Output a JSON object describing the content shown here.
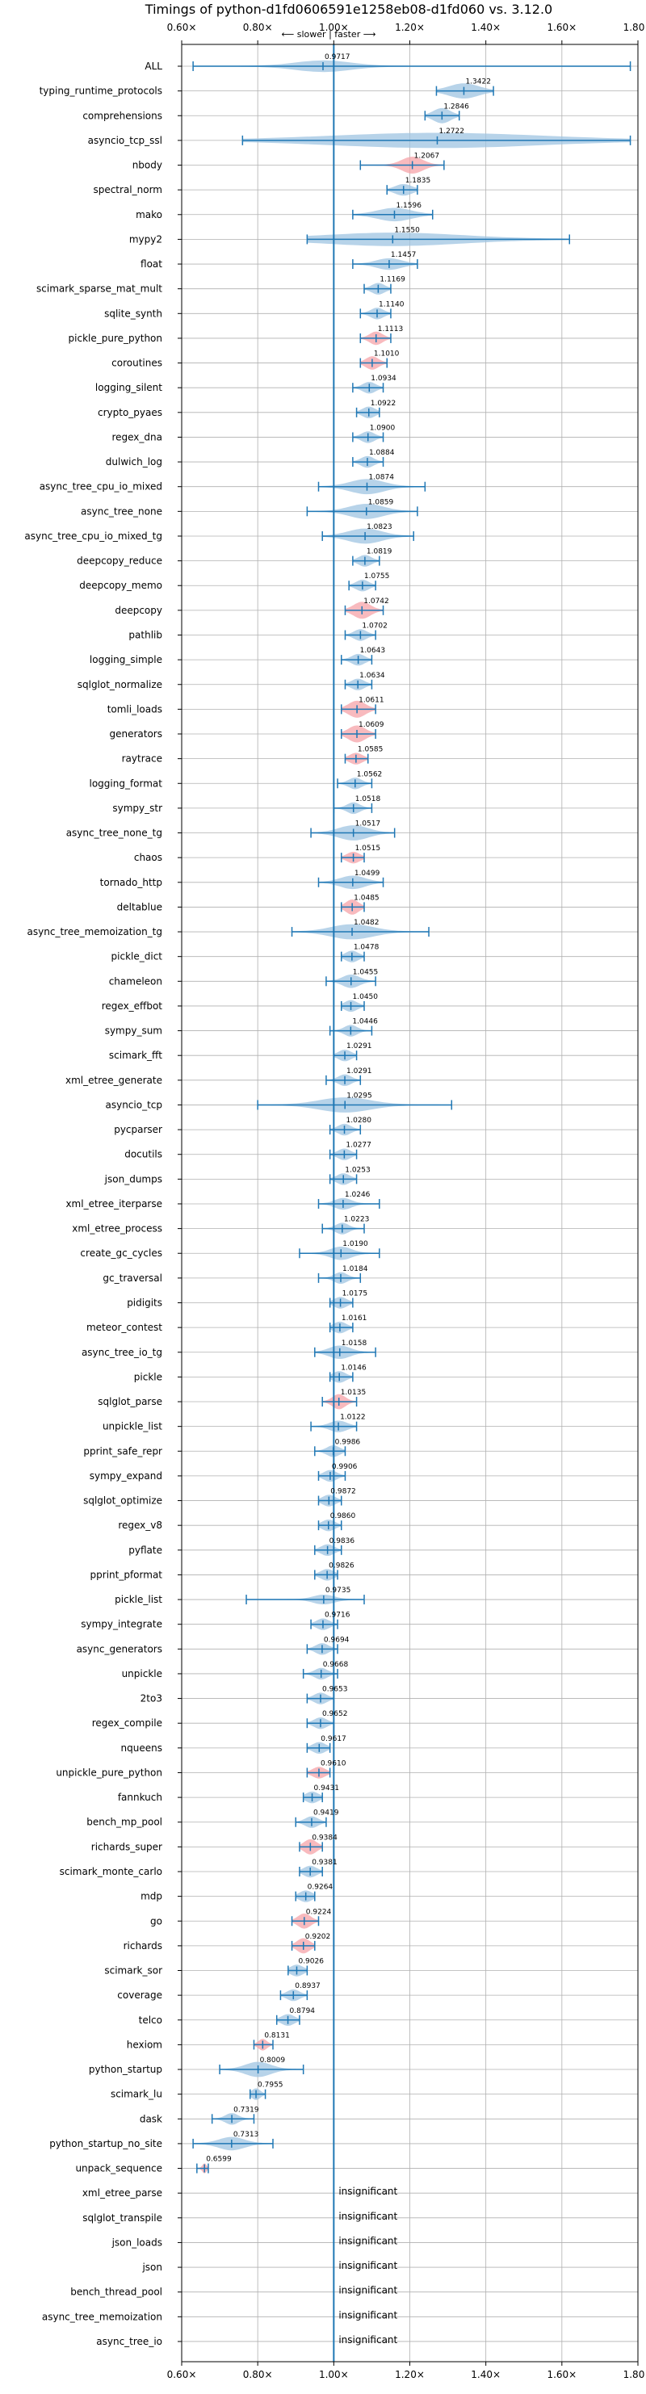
{
  "chart_data": {
    "type": "violin",
    "title": "Timings of python-d1fd0606591e1258eb08-d1fd060 vs. 3.12.0",
    "direction_label": "⟵ slower | faster ⟶",
    "xlim": [
      0.6,
      1.8
    ],
    "x_ticks": [
      "0.60×",
      "0.80×",
      "1.00×",
      "1.20×",
      "1.40×",
      "1.60×",
      "1.80×"
    ],
    "x_tick_values": [
      0.6,
      0.8,
      1.0,
      1.2,
      1.4,
      1.6,
      1.8
    ],
    "reference_line": 1.0,
    "insignificant_label": "insignificant",
    "colors": {
      "violin": "#9fc4e2",
      "highlight": "#f5a3a8",
      "line": "#1f77b4",
      "grid": "#b0b0b0"
    },
    "benchmarks": [
      {
        "name": "ALL",
        "value": 0.9717,
        "min": 0.63,
        "max": 1.78,
        "spread": 0.13,
        "w": 0.6
      },
      {
        "name": "typing_runtime_protocols",
        "value": 1.3422,
        "min": 1.27,
        "max": 1.42,
        "spread": 0.07,
        "w": 0.8
      },
      {
        "name": "comprehensions",
        "value": 1.2846,
        "min": 1.24,
        "max": 1.33,
        "spread": 0.04,
        "w": 0.8
      },
      {
        "name": "asyncio_tcp_ssl",
        "value": 1.2722,
        "min": 0.76,
        "max": 1.78,
        "spread": 0.5,
        "w": 0.8
      },
      {
        "name": "nbody",
        "value": 1.2067,
        "min": 1.07,
        "max": 1.29,
        "spread": 0.05,
        "w": 0.9,
        "hl": true
      },
      {
        "name": "spectral_norm",
        "value": 1.1835,
        "min": 1.14,
        "max": 1.22,
        "spread": 0.04,
        "w": 0.6
      },
      {
        "name": "mako",
        "value": 1.1596,
        "min": 1.05,
        "max": 1.26,
        "spread": 0.08,
        "w": 0.7
      },
      {
        "name": "mypy2",
        "value": 1.155,
        "min": 0.93,
        "max": 1.62,
        "spread": 0.33,
        "w": 0.7
      },
      {
        "name": "float",
        "value": 1.1457,
        "min": 1.05,
        "max": 1.22,
        "spread": 0.06,
        "w": 0.6
      },
      {
        "name": "scimark_sparse_mat_mult",
        "value": 1.1169,
        "min": 1.08,
        "max": 1.15,
        "spread": 0.03,
        "w": 0.6
      },
      {
        "name": "sqlite_synth",
        "value": 1.114,
        "min": 1.07,
        "max": 1.15,
        "spread": 0.03,
        "w": 0.6
      },
      {
        "name": "pickle_pure_python",
        "value": 1.1113,
        "min": 1.07,
        "max": 1.15,
        "spread": 0.03,
        "w": 0.7,
        "hl": true
      },
      {
        "name": "coroutines",
        "value": 1.101,
        "min": 1.07,
        "max": 1.14,
        "spread": 0.03,
        "w": 0.7,
        "hl": true
      },
      {
        "name": "logging_silent",
        "value": 1.0934,
        "min": 1.05,
        "max": 1.13,
        "spread": 0.03,
        "w": 0.6
      },
      {
        "name": "crypto_pyaes",
        "value": 1.0922,
        "min": 1.06,
        "max": 1.12,
        "spread": 0.03,
        "w": 0.6
      },
      {
        "name": "regex_dna",
        "value": 1.09,
        "min": 1.05,
        "max": 1.13,
        "spread": 0.03,
        "w": 0.6
      },
      {
        "name": "dulwich_log",
        "value": 1.0884,
        "min": 1.05,
        "max": 1.13,
        "spread": 0.03,
        "w": 0.6
      },
      {
        "name": "async_tree_cpu_io_mixed",
        "value": 1.0874,
        "min": 0.96,
        "max": 1.24,
        "spread": 0.08,
        "w": 0.8
      },
      {
        "name": "async_tree_none",
        "value": 1.0859,
        "min": 0.93,
        "max": 1.22,
        "spread": 0.08,
        "w": 0.8
      },
      {
        "name": "async_tree_cpu_io_mixed_tg",
        "value": 1.0823,
        "min": 0.97,
        "max": 1.21,
        "spread": 0.08,
        "w": 0.8
      },
      {
        "name": "deepcopy_reduce",
        "value": 1.0819,
        "min": 1.05,
        "max": 1.12,
        "spread": 0.03,
        "w": 0.6
      },
      {
        "name": "deepcopy_memo",
        "value": 1.0755,
        "min": 1.04,
        "max": 1.11,
        "spread": 0.03,
        "w": 0.6
      },
      {
        "name": "deepcopy",
        "value": 1.0742,
        "min": 1.03,
        "max": 1.13,
        "spread": 0.04,
        "w": 0.9,
        "hl": true
      },
      {
        "name": "pathlib",
        "value": 1.0702,
        "min": 1.03,
        "max": 1.11,
        "spread": 0.03,
        "w": 0.6
      },
      {
        "name": "logging_simple",
        "value": 1.0643,
        "min": 1.02,
        "max": 1.1,
        "spread": 0.03,
        "w": 0.6
      },
      {
        "name": "sqlglot_normalize",
        "value": 1.0634,
        "min": 1.03,
        "max": 1.1,
        "spread": 0.03,
        "w": 0.6
      },
      {
        "name": "tomli_loads",
        "value": 1.0611,
        "min": 1.02,
        "max": 1.11,
        "spread": 0.04,
        "w": 0.9,
        "hl": true
      },
      {
        "name": "generators",
        "value": 1.0609,
        "min": 1.02,
        "max": 1.11,
        "spread": 0.04,
        "w": 0.9,
        "hl": true
      },
      {
        "name": "raytrace",
        "value": 1.0585,
        "min": 1.03,
        "max": 1.09,
        "spread": 0.03,
        "w": 0.6,
        "hl": true
      },
      {
        "name": "logging_format",
        "value": 1.0562,
        "min": 1.01,
        "max": 1.1,
        "spread": 0.03,
        "w": 0.6
      },
      {
        "name": "sympy_str",
        "value": 1.0518,
        "min": 1.0,
        "max": 1.1,
        "spread": 0.03,
        "w": 0.6
      },
      {
        "name": "async_tree_none_tg",
        "value": 1.0517,
        "min": 0.94,
        "max": 1.16,
        "spread": 0.07,
        "w": 0.8
      },
      {
        "name": "chaos",
        "value": 1.0515,
        "min": 1.02,
        "max": 1.08,
        "spread": 0.03,
        "w": 0.6,
        "hl": true
      },
      {
        "name": "tornado_http",
        "value": 1.0499,
        "min": 0.96,
        "max": 1.13,
        "spread": 0.06,
        "w": 0.7
      },
      {
        "name": "deltablue",
        "value": 1.0485,
        "min": 1.02,
        "max": 1.08,
        "spread": 0.03,
        "w": 0.8,
        "hl": true
      },
      {
        "name": "async_tree_memoization_tg",
        "value": 1.0482,
        "min": 0.89,
        "max": 1.25,
        "spread": 0.1,
        "w": 0.8
      },
      {
        "name": "pickle_dict",
        "value": 1.0478,
        "min": 1.02,
        "max": 1.08,
        "spread": 0.03,
        "w": 0.6
      },
      {
        "name": "chameleon",
        "value": 1.0455,
        "min": 0.98,
        "max": 1.11,
        "spread": 0.04,
        "w": 0.7
      },
      {
        "name": "regex_effbot",
        "value": 1.045,
        "min": 1.02,
        "max": 1.08,
        "spread": 0.03,
        "w": 0.6
      },
      {
        "name": "sympy_sum",
        "value": 1.0446,
        "min": 0.99,
        "max": 1.1,
        "spread": 0.03,
        "w": 0.6
      },
      {
        "name": "scimark_fft",
        "value": 1.0291,
        "min": 1.0,
        "max": 1.06,
        "spread": 0.03,
        "w": 0.6
      },
      {
        "name": "xml_etree_generate",
        "value": 1.0291,
        "min": 0.98,
        "max": 1.07,
        "spread": 0.03,
        "w": 0.6
      },
      {
        "name": "asyncio_tcp",
        "value": 1.0295,
        "min": 0.8,
        "max": 1.31,
        "spread": 0.12,
        "w": 0.8
      },
      {
        "name": "pycparser",
        "value": 1.028,
        "min": 0.99,
        "max": 1.07,
        "spread": 0.03,
        "w": 0.6
      },
      {
        "name": "docutils",
        "value": 1.0277,
        "min": 0.99,
        "max": 1.06,
        "spread": 0.03,
        "w": 0.6
      },
      {
        "name": "json_dumps",
        "value": 1.0253,
        "min": 0.99,
        "max": 1.06,
        "spread": 0.03,
        "w": 0.6
      },
      {
        "name": "xml_etree_iterparse",
        "value": 1.0246,
        "min": 0.96,
        "max": 1.12,
        "spread": 0.04,
        "w": 0.6
      },
      {
        "name": "xml_etree_process",
        "value": 1.0223,
        "min": 0.97,
        "max": 1.08,
        "spread": 0.03,
        "w": 0.6
      },
      {
        "name": "create_gc_cycles",
        "value": 1.019,
        "min": 0.91,
        "max": 1.12,
        "spread": 0.05,
        "w": 0.7
      },
      {
        "name": "gc_traversal",
        "value": 1.0184,
        "min": 0.96,
        "max": 1.07,
        "spread": 0.03,
        "w": 0.6
      },
      {
        "name": "pidigits",
        "value": 1.0175,
        "min": 0.99,
        "max": 1.05,
        "spread": 0.03,
        "w": 0.6
      },
      {
        "name": "meteor_contest",
        "value": 1.0161,
        "min": 0.99,
        "max": 1.05,
        "spread": 0.03,
        "w": 0.6
      },
      {
        "name": "async_tree_io_tg",
        "value": 1.0158,
        "min": 0.95,
        "max": 1.11,
        "spread": 0.05,
        "w": 0.7
      },
      {
        "name": "pickle",
        "value": 1.0146,
        "min": 0.99,
        "max": 1.05,
        "spread": 0.03,
        "w": 0.6
      },
      {
        "name": "sqlglot_parse",
        "value": 1.0135,
        "min": 0.97,
        "max": 1.06,
        "spread": 0.03,
        "w": 0.8,
        "hl": true
      },
      {
        "name": "unpickle_list",
        "value": 1.0122,
        "min": 0.94,
        "max": 1.06,
        "spread": 0.04,
        "w": 0.6
      },
      {
        "name": "pprint_safe_repr",
        "value": 0.9986,
        "min": 0.95,
        "max": 1.03,
        "spread": 0.03,
        "w": 0.6
      },
      {
        "name": "sympy_expand",
        "value": 0.9906,
        "min": 0.96,
        "max": 1.03,
        "spread": 0.03,
        "w": 0.6
      },
      {
        "name": "sqlglot_optimize",
        "value": 0.9872,
        "min": 0.96,
        "max": 1.02,
        "spread": 0.03,
        "w": 0.6
      },
      {
        "name": "regex_v8",
        "value": 0.986,
        "min": 0.96,
        "max": 1.02,
        "spread": 0.03,
        "w": 0.6
      },
      {
        "name": "pyflate",
        "value": 0.9836,
        "min": 0.95,
        "max": 1.02,
        "spread": 0.03,
        "w": 0.6
      },
      {
        "name": "pprint_pformat",
        "value": 0.9826,
        "min": 0.95,
        "max": 1.01,
        "spread": 0.03,
        "w": 0.6
      },
      {
        "name": "pickle_list",
        "value": 0.9735,
        "min": 0.77,
        "max": 1.08,
        "spread": 0.05,
        "w": 0.5
      },
      {
        "name": "sympy_integrate",
        "value": 0.9716,
        "min": 0.94,
        "max": 1.01,
        "spread": 0.03,
        "w": 0.6
      },
      {
        "name": "async_generators",
        "value": 0.9694,
        "min": 0.93,
        "max": 1.01,
        "spread": 0.03,
        "w": 0.6
      },
      {
        "name": "unpickle",
        "value": 0.9668,
        "min": 0.92,
        "max": 1.01,
        "spread": 0.03,
        "w": 0.6
      },
      {
        "name": "2to3",
        "value": 0.9653,
        "min": 0.93,
        "max": 1.0,
        "spread": 0.03,
        "w": 0.6
      },
      {
        "name": "regex_compile",
        "value": 0.9652,
        "min": 0.93,
        "max": 1.0,
        "spread": 0.03,
        "w": 0.6
      },
      {
        "name": "nqueens",
        "value": 0.9617,
        "min": 0.93,
        "max": 0.99,
        "spread": 0.03,
        "w": 0.6
      },
      {
        "name": "unpickle_pure_python",
        "value": 0.961,
        "min": 0.93,
        "max": 0.99,
        "spread": 0.03,
        "w": 0.6,
        "hl": true
      },
      {
        "name": "fannkuch",
        "value": 0.9431,
        "min": 0.92,
        "max": 0.97,
        "spread": 0.03,
        "w": 0.6
      },
      {
        "name": "bench_mp_pool",
        "value": 0.9419,
        "min": 0.9,
        "max": 0.98,
        "spread": 0.03,
        "w": 0.6
      },
      {
        "name": "richards_super",
        "value": 0.9384,
        "min": 0.91,
        "max": 0.97,
        "spread": 0.03,
        "w": 0.8,
        "hl": true
      },
      {
        "name": "scimark_monte_carlo",
        "value": 0.9381,
        "min": 0.91,
        "max": 0.97,
        "spread": 0.03,
        "w": 0.6
      },
      {
        "name": "mdp",
        "value": 0.9264,
        "min": 0.9,
        "max": 0.95,
        "spread": 0.03,
        "w": 0.6
      },
      {
        "name": "go",
        "value": 0.9224,
        "min": 0.89,
        "max": 0.96,
        "spread": 0.03,
        "w": 0.8,
        "hl": true
      },
      {
        "name": "richards",
        "value": 0.9202,
        "min": 0.89,
        "max": 0.95,
        "spread": 0.03,
        "w": 0.8,
        "hl": true
      },
      {
        "name": "scimark_sor",
        "value": 0.9026,
        "min": 0.88,
        "max": 0.93,
        "spread": 0.03,
        "w": 0.6
      },
      {
        "name": "coverage",
        "value": 0.8937,
        "min": 0.86,
        "max": 0.93,
        "spread": 0.03,
        "w": 0.6
      },
      {
        "name": "telco",
        "value": 0.8794,
        "min": 0.85,
        "max": 0.91,
        "spread": 0.03,
        "w": 0.6
      },
      {
        "name": "hexiom",
        "value": 0.8131,
        "min": 0.79,
        "max": 0.84,
        "spread": 0.02,
        "w": 0.6,
        "hl": true
      },
      {
        "name": "python_startup",
        "value": 0.8009,
        "min": 0.7,
        "max": 0.92,
        "spread": 0.06,
        "w": 0.8
      },
      {
        "name": "scimark_lu",
        "value": 0.7955,
        "min": 0.78,
        "max": 0.82,
        "spread": 0.02,
        "w": 0.6
      },
      {
        "name": "dask",
        "value": 0.7319,
        "min": 0.68,
        "max": 0.79,
        "spread": 0.03,
        "w": 0.6
      },
      {
        "name": "python_startup_no_site",
        "value": 0.7313,
        "min": 0.63,
        "max": 0.84,
        "spread": 0.06,
        "w": 0.7
      },
      {
        "name": "unpack_sequence",
        "value": 0.6599,
        "min": 0.64,
        "max": 0.67,
        "spread": 0.01,
        "w": 0.5,
        "hl": true
      },
      {
        "name": "xml_etree_parse",
        "insignificant": true
      },
      {
        "name": "sqlglot_transpile",
        "insignificant": true
      },
      {
        "name": "json_loads",
        "insignificant": true
      },
      {
        "name": "json",
        "insignificant": true
      },
      {
        "name": "bench_thread_pool",
        "insignificant": true
      },
      {
        "name": "async_tree_memoization",
        "insignificant": true
      },
      {
        "name": "async_tree_io",
        "insignificant": true
      }
    ]
  }
}
